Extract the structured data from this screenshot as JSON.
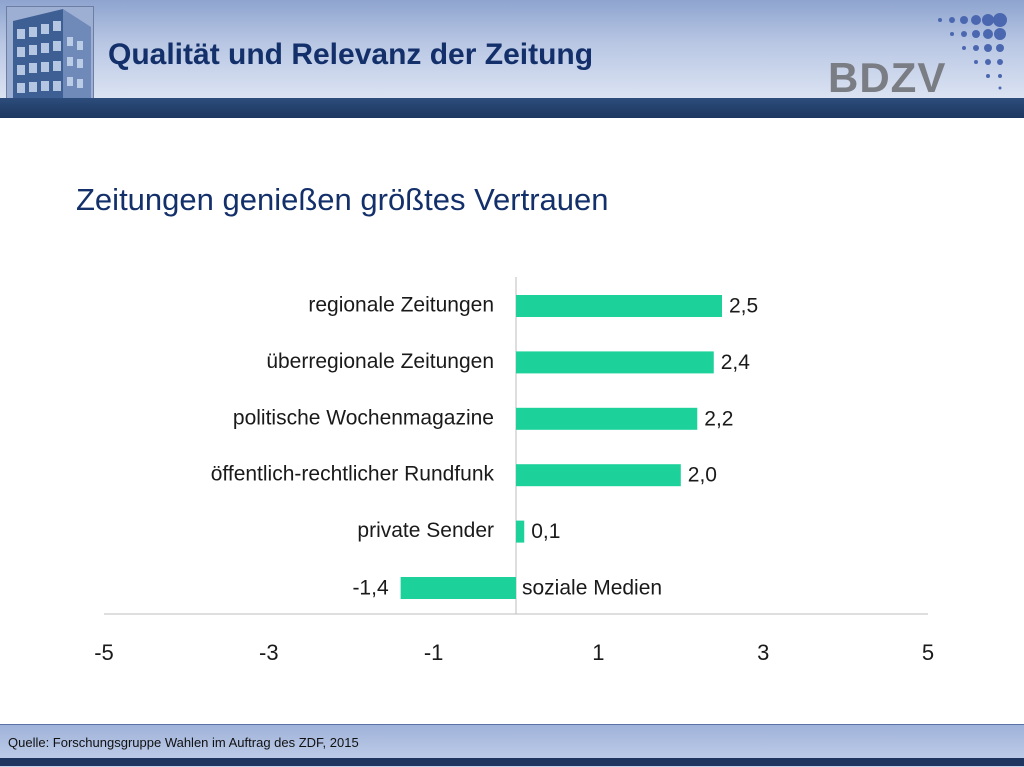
{
  "header": {
    "title": "Qualität und Relevanz der Zeitung",
    "logo_text": "BDZV"
  },
  "subtitle": "Zeitungen genießen größtes Vertrauen",
  "footer": {
    "source": "Quelle: Forschungsgruppe Wahlen im Auftrag des ZDF, 2015"
  },
  "colors": {
    "bar": "#1dd19a",
    "title": "#13306a",
    "header_band": "#1c365f"
  },
  "chart_data": {
    "type": "bar",
    "orientation": "horizontal",
    "categories": [
      "regionale Zeitungen",
      "überregionale Zeitungen",
      "politische Wochenmagazine",
      "öffentlich-rechtlicher Rundfunk",
      "private Sender",
      "soziale Medien"
    ],
    "values": [
      2.5,
      2.4,
      2.2,
      2.0,
      0.1,
      -1.4
    ],
    "value_labels": [
      "2,5",
      "2,4",
      "2,2",
      "2,0",
      "0,1",
      "-1,4"
    ],
    "xlim": [
      -5,
      5
    ],
    "xticks": [
      -5,
      -3,
      -1,
      1,
      3,
      5
    ],
    "grid": false,
    "legend": "none"
  }
}
